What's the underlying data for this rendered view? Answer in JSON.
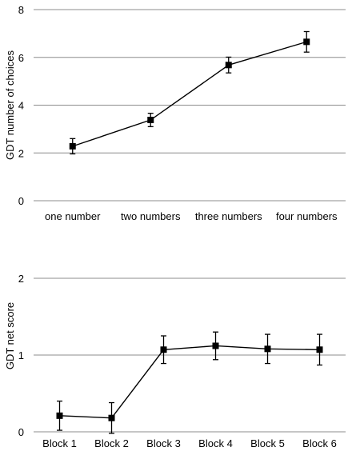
{
  "chart_data": [
    {
      "type": "line",
      "title": "",
      "xlabel": "",
      "ylabel": "GDT number of choices",
      "categories": [
        "one number",
        "two numbers",
        "three numbers",
        "four numbers"
      ],
      "ylim": [
        0,
        8
      ],
      "yticks": [
        0,
        2,
        4,
        6,
        8
      ],
      "grid": true,
      "series": [
        {
          "values": [
            2.28,
            3.38,
            5.68,
            6.65
          ],
          "error": [
            0.32,
            0.28,
            0.33,
            0.43
          ]
        }
      ]
    },
    {
      "type": "line",
      "title": "",
      "xlabel": "",
      "ylabel": "GDT net score",
      "categories": [
        "Block 1",
        "Block 2",
        "Block 3",
        "Block 4",
        "Block 5",
        "Block 6"
      ],
      "ylim": [
        0,
        2.5
      ],
      "yticks": [
        0,
        1,
        2
      ],
      "grid": true,
      "series": [
        {
          "values": [
            0.21,
            0.18,
            1.07,
            1.12,
            1.08,
            1.07
          ],
          "error": [
            0.19,
            0.2,
            0.18,
            0.18,
            0.19,
            0.2
          ]
        }
      ]
    }
  ]
}
